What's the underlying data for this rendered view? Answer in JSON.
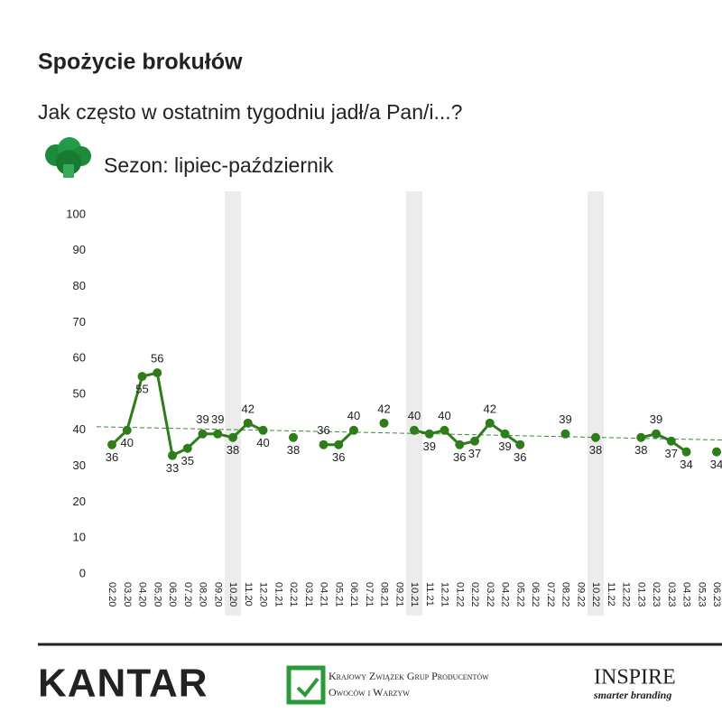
{
  "chart_data": {
    "type": "line",
    "title": "Spożycie brokułów",
    "subtitle": "Jak często w ostatnim tygodniu jadł/a Pan/i...?",
    "legend_label": "Sezon: lipiec-październik",
    "categories": [
      "02.20",
      "03.20",
      "04.20",
      "05.20",
      "06.20",
      "07.20",
      "08.20",
      "09.20",
      "10.20",
      "11.20",
      "12.20",
      "01.21",
      "02.21",
      "03.21",
      "04.21",
      "05.21",
      "06.21",
      "07.21",
      "08.21",
      "09.21",
      "10.21",
      "11.21",
      "12.21",
      "01.22",
      "02.22",
      "03.22",
      "04.22",
      "05.22",
      "06.22",
      "07.22",
      "08.22",
      "09.22",
      "10.22",
      "11.22",
      "12.22",
      "01.23",
      "02.23",
      "03.23",
      "04.23",
      "05.23",
      "06.23"
    ],
    "series": [
      {
        "color": "#2e7d1a",
        "values": [
          36,
          40,
          55,
          56,
          33,
          35,
          39,
          39,
          38,
          42,
          40,
          null,
          38,
          null,
          36,
          36,
          40,
          null,
          42,
          null,
          40,
          39,
          40,
          36,
          37,
          42,
          39,
          36,
          null,
          null,
          39,
          null,
          38,
          null,
          null,
          38,
          39,
          37,
          34,
          null,
          34
        ]
      }
    ],
    "trendline": [
      41,
      37.3
    ],
    "trend_color": "#3a8a3a",
    "highlight_indices": [
      8,
      20,
      32
    ],
    "ylim": [
      0,
      100
    ],
    "yticks": [
      0,
      10,
      20,
      30,
      40,
      50,
      60,
      70,
      80,
      90,
      100
    ]
  },
  "footer": {
    "kantar": "KANTAR",
    "kzgppow": "Krajowy Związek Grup Producentów Owoców i Warzyw",
    "inspire": "INSPIRE",
    "inspire_tagline": "smarter branding"
  }
}
